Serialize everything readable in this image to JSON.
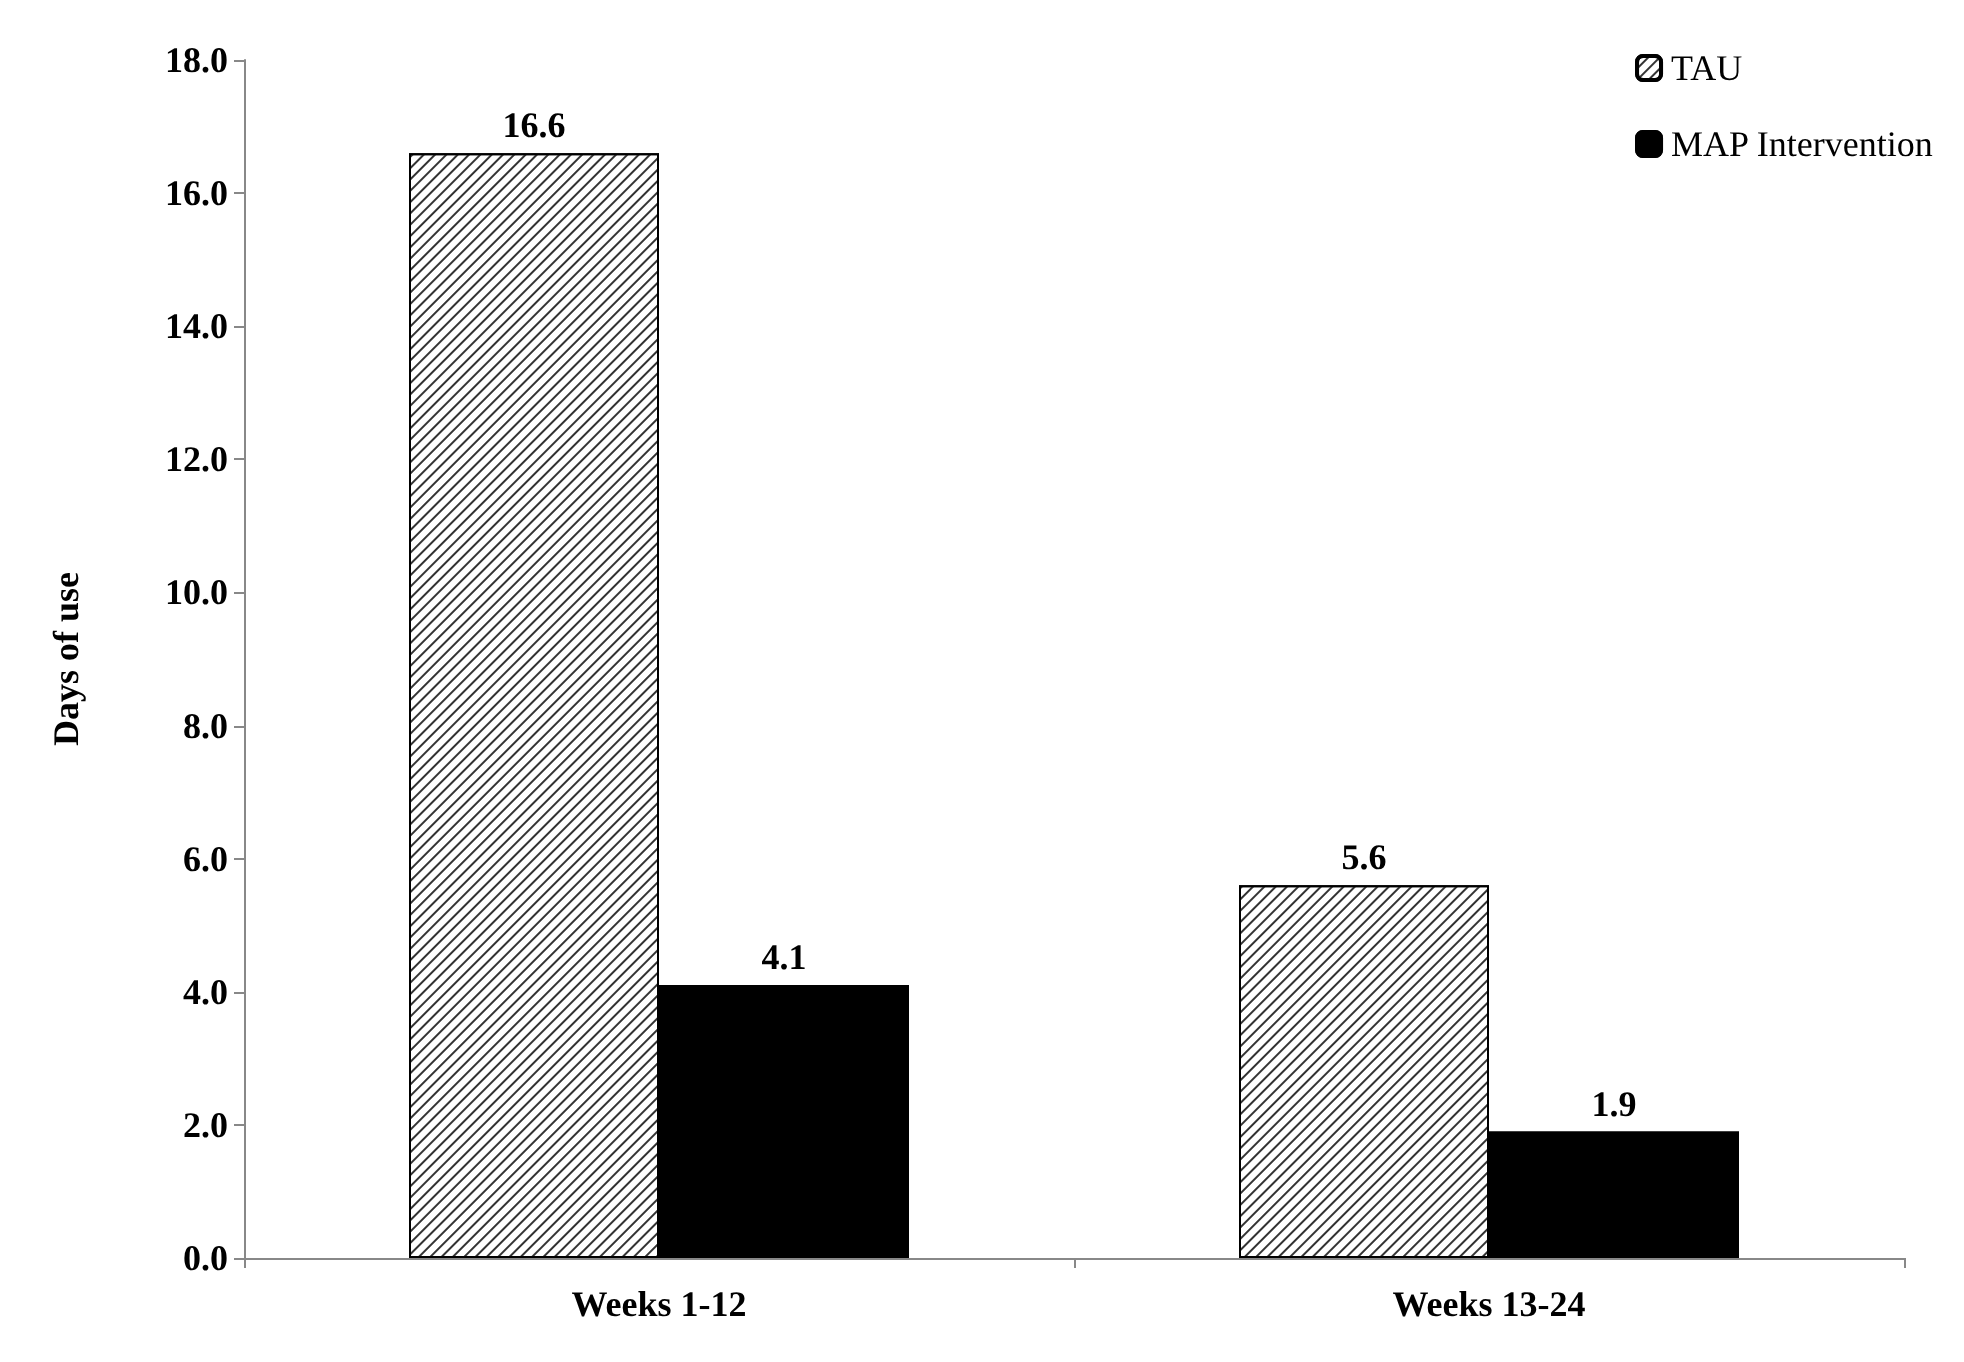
{
  "chart_data": {
    "type": "bar",
    "ylabel": "Days of use",
    "categories": [
      "Weeks 1-12",
      "Weeks 13-24"
    ],
    "series": [
      {
        "name": "TAU",
        "color": "#ffffff",
        "values": [
          16.6,
          5.6
        ]
      },
      {
        "name": "MAP Intervention",
        "color": "#000000",
        "values": [
          4.1,
          1.9
        ]
      }
    ],
    "ylim": [
      0,
      18
    ],
    "yticks": [
      {
        "value": 0,
        "label": "0.0"
      },
      {
        "value": 2,
        "label": "2.0"
      },
      {
        "value": 4,
        "label": "4.0"
      },
      {
        "value": 6,
        "label": "6.0"
      },
      {
        "value": 8,
        "label": "8.0"
      },
      {
        "value": 10,
        "label": "10.0"
      },
      {
        "value": 12,
        "label": "12.0"
      },
      {
        "value": 14,
        "label": "14.0"
      },
      {
        "value": 16,
        "label": "16.0"
      },
      {
        "value": 18,
        "label": "18.0"
      }
    ],
    "data_labels": true,
    "grid": false,
    "legend": "top right"
  }
}
